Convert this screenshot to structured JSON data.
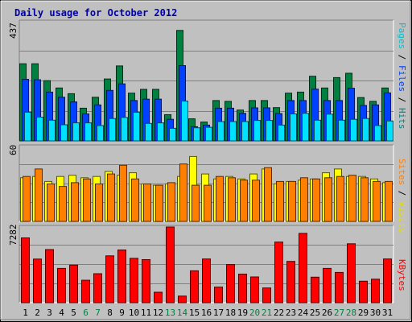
{
  "title": "Daily usage for October 2012",
  "chart_data": [
    {
      "type": "bar",
      "title": "Pages / Files / Hits",
      "ymax_label": "437",
      "ylim": [
        0,
        437
      ],
      "categories": [
        "1",
        "2",
        "3",
        "4",
        "5",
        "6",
        "7",
        "8",
        "9",
        "10",
        "11",
        "12",
        "13",
        "14",
        "15",
        "16",
        "17",
        "18",
        "19",
        "20",
        "21",
        "22",
        "23",
        "24",
        "25",
        "26",
        "27",
        "28",
        "29",
        "30",
        "31"
      ],
      "series": [
        {
          "name": "Hits",
          "color": "#008040",
          "values": [
            283,
            283,
            221,
            194,
            173,
            120,
            160,
            227,
            275,
            175,
            189,
            189,
            96,
            405,
            81,
            69,
            148,
            145,
            113,
            148,
            148,
            122,
            175,
            179,
            237,
            194,
            232,
            248,
            159,
            145,
            194
          ]
        },
        {
          "name": "Files",
          "color": "#0040ff",
          "values": [
            226,
            224,
            179,
            160,
            143,
            99,
            132,
            185,
            209,
            148,
            153,
            153,
            79,
            276,
            52,
            58,
            120,
            120,
            101,
            121,
            121,
            100,
            148,
            148,
            190,
            148,
            148,
            193,
            130,
            132,
            176
          ]
        },
        {
          "name": "Pages",
          "color": "#00e0ff",
          "values": [
            105,
            87,
            76,
            59,
            66,
            66,
            56,
            82,
            86,
            105,
            64,
            66,
            46,
            146,
            48,
            50,
            71,
            71,
            71,
            75,
            75,
            58,
            99,
            101,
            76,
            98,
            76,
            79,
            82,
            56,
            73
          ]
        }
      ]
    },
    {
      "type": "bar",
      "title": "Sites / Visits",
      "ymax_label": "60",
      "ylim": [
        0,
        60
      ],
      "categories": [
        "1",
        "2",
        "3",
        "4",
        "5",
        "6",
        "7",
        "8",
        "9",
        "10",
        "11",
        "12",
        "13",
        "14",
        "15",
        "16",
        "17",
        "18",
        "19",
        "20",
        "21",
        "22",
        "23",
        "24",
        "25",
        "26",
        "27",
        "28",
        "29",
        "30",
        "31"
      ],
      "series": [
        {
          "name": "Visits",
          "color": "#ffff00",
          "values": [
            35,
            36,
            32,
            36,
            37,
            35,
            36,
            40,
            37,
            39,
            30,
            29,
            30,
            36,
            52,
            38,
            34,
            36,
            34,
            38,
            42,
            30,
            32,
            33,
            34,
            39,
            42,
            36,
            36,
            34,
            31
          ]
        },
        {
          "name": "Sites",
          "color": "#ff8000",
          "values": [
            36,
            42,
            30,
            28,
            31,
            34,
            30,
            38,
            45,
            34,
            30,
            29,
            31,
            46,
            29,
            29,
            36,
            35,
            33,
            33,
            43,
            32,
            32,
            35,
            34,
            35,
            36,
            37,
            35,
            32,
            32
          ]
        }
      ]
    },
    {
      "type": "bar",
      "title": "KBytes",
      "ymax_label": "7282",
      "ylim": [
        0,
        7282
      ],
      "categories": [
        "1",
        "2",
        "3",
        "4",
        "5",
        "6",
        "7",
        "8",
        "9",
        "10",
        "11",
        "12",
        "13",
        "14",
        "15",
        "16",
        "17",
        "18",
        "19",
        "20",
        "21",
        "22",
        "23",
        "24",
        "25",
        "26",
        "27",
        "28",
        "29",
        "30",
        "31"
      ],
      "series": [
        {
          "name": "KBytes",
          "color": "#ff0000",
          "values": [
            6236,
            4196,
            5111,
            3300,
            3615,
            2164,
            2789,
            4511,
            5071,
            4272,
            4147,
            1010,
            7282,
            636,
            3064,
            4206,
            1506,
            3671,
            2752,
            2477,
            1420,
            5830,
            3974,
            6669,
            2454,
            3300,
            2911,
            5667,
            2072,
            2264,
            4210
          ]
        }
      ]
    }
  ],
  "x_colors": [
    "#000000",
    "#000000",
    "#000000",
    "#000000",
    "#000000",
    "#008040",
    "#008040",
    "#000000",
    "#000000",
    "#000000",
    "#000000",
    "#000000",
    "#008040",
    "#008040",
    "#000000",
    "#000000",
    "#000000",
    "#000000",
    "#000000",
    "#008040",
    "#008040",
    "#000000",
    "#000000",
    "#000000",
    "#000000",
    "#000000",
    "#008040",
    "#008040",
    "#000000",
    "#000000",
    "#000000"
  ],
  "legend_colors": {
    "pages": "#00c0d0",
    "files": "#0040ff",
    "hits": "#008080",
    "sites": "#ff8000",
    "visits": "#e0e000",
    "kbytes": "#ff0000",
    "separator": "#000000"
  }
}
